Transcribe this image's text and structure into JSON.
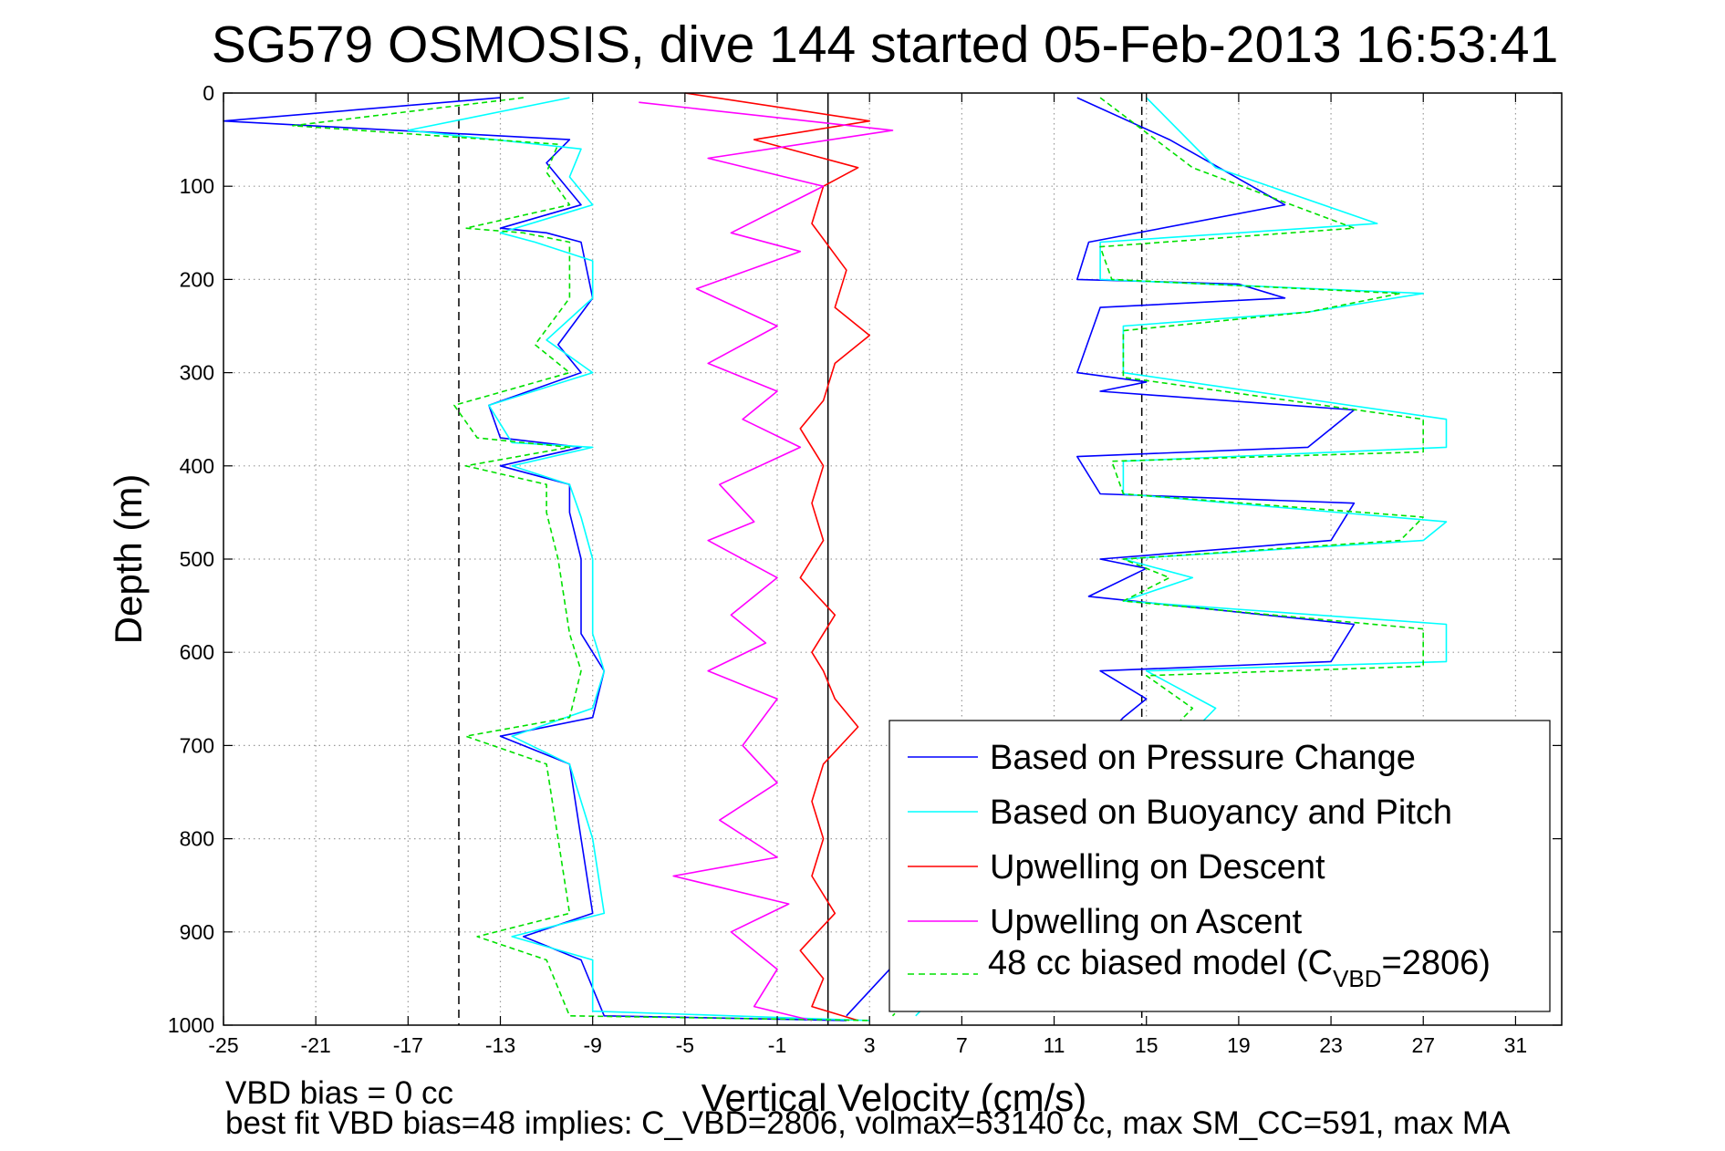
{
  "chart_data": {
    "type": "line",
    "title": "SG579 OSMOSIS, dive 144 started 05-Feb-2013 16:53:41",
    "xlabel": "Vertical Velocity (cm/s)",
    "ylabel": "Depth (m)",
    "xlim": [
      -25,
      33
    ],
    "ylim": [
      1000,
      0
    ],
    "y_reversed": true,
    "grid": true,
    "legend_position": "lower-right",
    "x_ticks": [
      "-25",
      "-21",
      "-17",
      "-13",
      "-9",
      "-5",
      "-1",
      "3",
      "7",
      "11",
      "15",
      "19",
      "23",
      "27",
      "31"
    ],
    "y_ticks": [
      "0",
      "100",
      "200",
      "300",
      "400",
      "500",
      "600",
      "700",
      "800",
      "900",
      "1000"
    ],
    "reference_lines": [
      {
        "x": -14.8,
        "style": "dashed",
        "color": "#000000"
      },
      {
        "x": 1.2,
        "style": "solid",
        "color": "#000000"
      },
      {
        "x": 14.8,
        "style": "dashed",
        "color": "#000000"
      }
    ],
    "series": [
      {
        "name": "Based on Pressure Change",
        "color": "#0000ff",
        "dash": "solid",
        "segments": [
          {
            "x": [
              -13,
              -25,
              -10,
              -11,
              -9.5,
              -13,
              -11,
              -9.5,
              -9,
              -10.5,
              -9.5,
              -13.5,
              -13,
              -9.5,
              -13,
              -10,
              -10,
              -9.5,
              -9.5,
              -8.5,
              -9,
              -13,
              -10,
              -9.5,
              -9,
              -12,
              -9.5,
              -8.5,
              2
            ],
            "y": [
              5,
              30,
              50,
              75,
              120,
              145,
              150,
              160,
              220,
              270,
              300,
              335,
              370,
              380,
              400,
              420,
              450,
              500,
              580,
              620,
              670,
              690,
              720,
              800,
              880,
              905,
              930,
              990,
              995
            ]
          },
          {
            "x": 14,
            "y": 0
          },
          {
            "x": [
              12,
              16,
              21,
              12.5,
              12,
              19,
              21,
              13,
              12,
              15,
              13,
              24,
              22,
              12,
              13,
              24,
              23,
              13,
              15,
              12.5,
              24,
              23,
              13,
              15,
              14,
              2
            ],
            "y": [
              5,
              50,
              120,
              160,
              200,
              205,
              220,
              230,
              300,
              310,
              320,
              340,
              380,
              390,
              430,
              440,
              480,
              500,
              510,
              540,
              570,
              610,
              620,
              650,
              670,
              990
            ]
          }
        ]
      },
      {
        "name": "Based on Buoyancy and Pitch",
        "color": "#00ffff",
        "dash": "solid",
        "segments": [
          {
            "x": [
              -10,
              -17,
              -9.5,
              -10,
              -9,
              -13,
              -11.5,
              -9,
              -9,
              -11,
              -9,
              -13.5,
              -12.5,
              -9,
              -12.5,
              -10,
              -9.5,
              -9,
              -9,
              -8.5,
              -9,
              -12.5,
              -10,
              -9,
              -8.5,
              -12.5,
              -9,
              -9,
              3
            ],
            "y": [
              5,
              40,
              60,
              90,
              120,
              150,
              160,
              180,
              220,
              265,
              300,
              335,
              375,
              380,
              400,
              420,
              455,
              500,
              580,
              620,
              660,
              690,
              720,
              800,
              880,
              905,
              930,
              985,
              995
            ]
          },
          {
            "x": [
              15,
              18,
              25,
              13,
              13,
              27,
              22,
              14,
              14,
              28,
              28,
              14,
              14,
              28,
              27,
              14,
              17,
              14,
              28,
              28,
              15,
              18,
              5
            ],
            "y": [
              5,
              80,
              140,
              160,
              200,
              215,
              235,
              250,
              300,
              350,
              380,
              395,
              430,
              460,
              480,
              500,
              520,
              545,
              570,
              610,
              620,
              660,
              990
            ]
          }
        ]
      },
      {
        "name": "Upwelling on Descent",
        "color": "#ff0000",
        "dash": "solid",
        "segments": [
          {
            "x": [
              -5,
              3,
              -2,
              2.5,
              1,
              0.5,
              2,
              1.5,
              3,
              1.5,
              1,
              0,
              1,
              0.5,
              1,
              0,
              1.5,
              0.5,
              1,
              1.5,
              2.5,
              1,
              0.5,
              1,
              0.5,
              1.5,
              0,
              1,
              0.5,
              2.5
            ],
            "y": [
              0,
              30,
              50,
              80,
              100,
              140,
              190,
              230,
              260,
              290,
              330,
              360,
              400,
              440,
              480,
              520,
              560,
              600,
              620,
              650,
              680,
              720,
              760,
              800,
              840,
              880,
              920,
              950,
              980,
              995
            ]
          }
        ]
      },
      {
        "name": "Upwelling on Ascent",
        "color": "#ff00ff",
        "dash": "solid",
        "segments": [
          {
            "x": [
              -7,
              4,
              -4,
              1,
              -3,
              0,
              -4.5,
              -1,
              -4,
              -1,
              -2.5,
              0,
              -3.5,
              -2,
              -4,
              -1,
              -3,
              -1.5,
              -4,
              -1,
              -2.5,
              -1,
              -3.5,
              -1,
              -5.5,
              -0.5,
              -3,
              -1,
              -2,
              0.5
            ],
            "y": [
              10,
              40,
              70,
              100,
              150,
              170,
              210,
              250,
              290,
              320,
              350,
              380,
              420,
              460,
              480,
              520,
              560,
              590,
              620,
              650,
              700,
              740,
              780,
              820,
              840,
              870,
              900,
              940,
              980,
              995
            ]
          }
        ]
      },
      {
        "name": "48 cc biased model (C_VBD=2806)",
        "color": "#00e000",
        "dash": "dashed",
        "segments": [
          {
            "x": [
              -12,
              -22,
              -10.5,
              -11,
              -10,
              -14.5,
              -12,
              -10,
              -10,
              -11.5,
              -10,
              -15,
              -14,
              -10,
              -14.5,
              -11,
              -11,
              -10.5,
              -10,
              -9.5,
              -10,
              -14.5,
              -11,
              -10.5,
              -10,
              -14,
              -11,
              -10,
              3
            ],
            "y": [
              5,
              35,
              55,
              85,
              120,
              145,
              150,
              160,
              220,
              270,
              300,
              335,
              370,
              380,
              400,
              420,
              450,
              500,
              580,
              620,
              670,
              690,
              720,
              800,
              880,
              905,
              930,
              990,
              995
            ]
          },
          {
            "x": 33,
            "y": 0
          },
          {
            "x": [
              13,
              17,
              24,
              13,
              13.5,
              26,
              22,
              14,
              14,
              27,
              27,
              13.5,
              14,
              27,
              26,
              14,
              16,
              14,
              27,
              27,
              15,
              17,
              4
            ],
            "y": [
              5,
              80,
              145,
              165,
              200,
              215,
              235,
              255,
              305,
              350,
              385,
              395,
              430,
              455,
              480,
              500,
              520,
              545,
              575,
              615,
              625,
              660,
              990
            ]
          }
        ]
      }
    ]
  },
  "legend": {
    "items": [
      {
        "label": "Based on Pressure Change",
        "color": "#0000ff",
        "dash": "solid"
      },
      {
        "label": "Based on Buoyancy and Pitch",
        "color": "#00ffff",
        "dash": "solid"
      },
      {
        "label": "Upwelling on Descent",
        "color": "#ff0000",
        "dash": "solid"
      },
      {
        "label": "Upwelling on Ascent",
        "color": "#ff00ff",
        "dash": "solid"
      }
    ],
    "model_item": {
      "color": "#00e000",
      "prefix": "48 cc biased model (C",
      "subscript": "VBD",
      "suffix": "=2806)"
    }
  },
  "footer": {
    "line1": "VBD bias = 0 cc",
    "line2": "best fit VBD bias=48 implies: C_VBD=2806, volmax=53140 cc, max SM_CC=591, max MA"
  }
}
